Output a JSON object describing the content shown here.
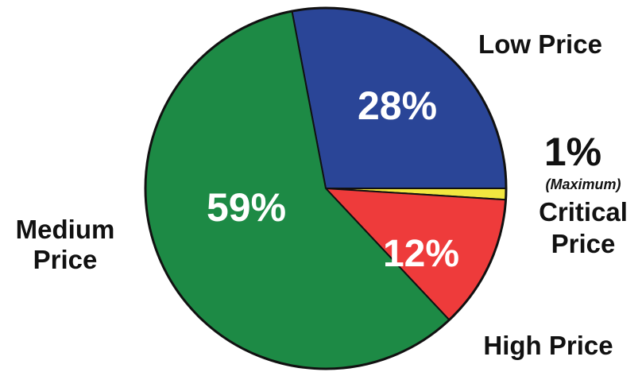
{
  "chart_data": {
    "type": "pie",
    "title": "",
    "slices": [
      {
        "label": "Low Price",
        "value": 28,
        "value_label": "28%",
        "color": "#2a4597"
      },
      {
        "label": "Critical Price",
        "note": "(Maximum)",
        "value": 1,
        "value_label": "1%",
        "color": "#f2e640"
      },
      {
        "label": "High Price",
        "value": 12,
        "value_label": "12%",
        "color": "#ee3b3b"
      },
      {
        "label": "Medium Price",
        "value": 59,
        "value_label": "59%",
        "color": "#1d8a45"
      }
    ],
    "outline_color": "#111111"
  }
}
